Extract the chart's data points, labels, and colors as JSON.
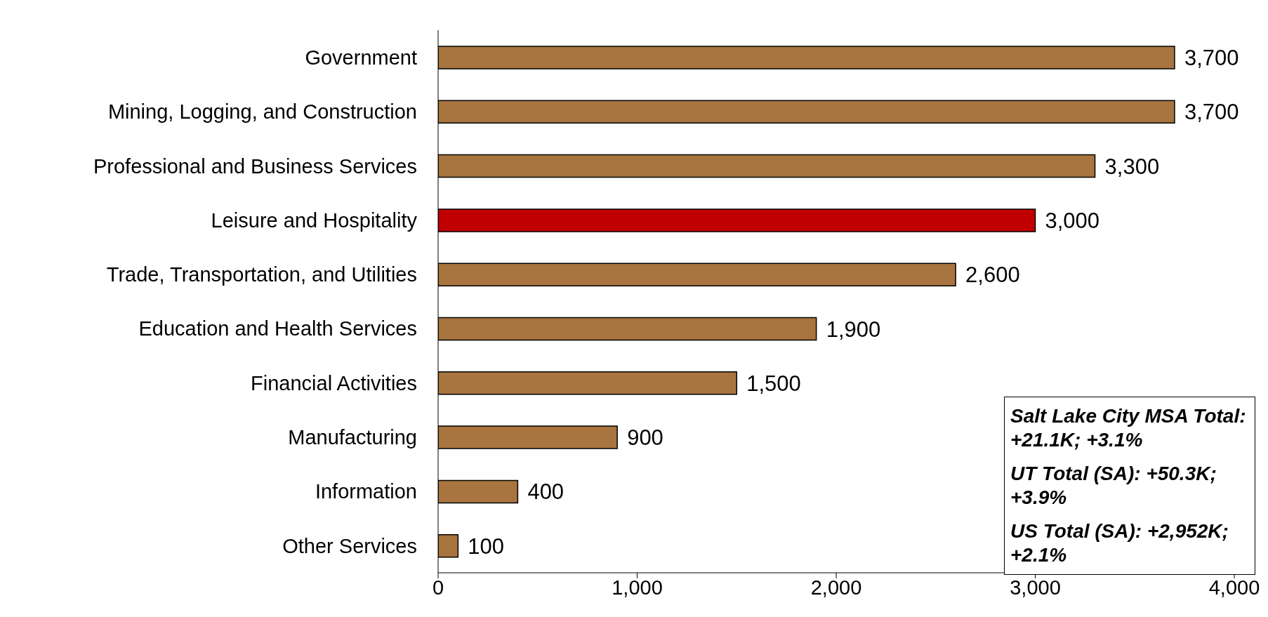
{
  "chart_data": {
    "type": "bar",
    "orientation": "horizontal",
    "categories": [
      "Government",
      "Mining, Logging, and Construction",
      "Professional and Business Services",
      "Leisure and Hospitality",
      "Trade, Transportation, and Utilities",
      "Education and Health Services",
      "Financial Activities",
      "Manufacturing",
      "Information",
      "Other Services"
    ],
    "values": [
      3700,
      3700,
      3300,
      3000,
      2600,
      1900,
      1500,
      900,
      400,
      100
    ],
    "value_labels": [
      "3,700",
      "3,700",
      "3,300",
      "3,000",
      "2,600",
      "1,900",
      "1,500",
      "900",
      "400",
      "100"
    ],
    "colors": [
      "#a87440",
      "#a87440",
      "#a87440",
      "#c00000",
      "#a87440",
      "#a87440",
      "#a87440",
      "#a87440",
      "#a87440",
      "#a87440"
    ],
    "xlim": [
      0,
      4000
    ],
    "xticks": [
      0,
      {
        "value": 1000,
        "label": "1,000"
      },
      {
        "value": 2000,
        "label": "2,000"
      },
      {
        "value": 3000,
        "label": "3,000"
      },
      {
        "value": 4000,
        "label": "4,000"
      }
    ],
    "grid": false,
    "legend": false,
    "annotations": [
      "Salt Lake City MSA Total: +21.1K; +3.1%",
      "UT Total (SA): +50.3K; +3.9%",
      "US Total (SA): +2,952K; +2.1%"
    ]
  }
}
